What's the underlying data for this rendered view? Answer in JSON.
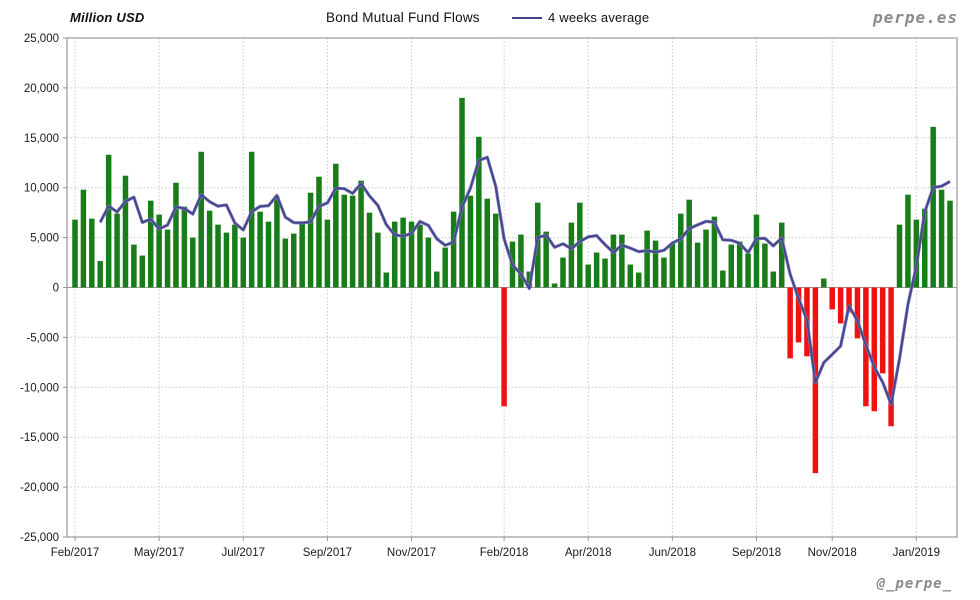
{
  "header": {
    "unit_label": "Million USD",
    "title": "Bond Mutual Fund Flows",
    "legend_label": "4 weeks average",
    "brand": "perpe.es"
  },
  "footer": {
    "handle": "@_perpe_"
  },
  "chart_data": {
    "type": "bar",
    "title": "Bond Mutual Fund Flows",
    "ylabel": "Million USD",
    "ylim": [
      -25000,
      25000
    ],
    "y_tick_step": 5000,
    "grid": true,
    "legend_position": "top",
    "frequency": "weekly",
    "series": [
      {
        "name": "Weekly bond mutual fund flows (Million USD)",
        "type": "bar"
      },
      {
        "name": "4 weeks average",
        "type": "line",
        "derived": "trailing_mean_window_4"
      }
    ],
    "weekly_values": [
      6800,
      9800,
      6900,
      2650,
      13300,
      7400,
      11200,
      4300,
      3200,
      8700,
      7300,
      5800,
      10500,
      8100,
      5000,
      13600,
      7700,
      6300,
      5500,
      6300,
      5000,
      13600,
      7600,
      6600,
      9100,
      4900,
      5400,
      6500,
      9500,
      11100,
      6800,
      12400,
      9300,
      9200,
      10700,
      7500,
      5500,
      1500,
      6600,
      7000,
      6600,
      6300,
      5000,
      1600,
      4000,
      7600,
      19000,
      9200,
      15100,
      8900,
      7400,
      -11900,
      4600,
      5300,
      1600,
      8500,
      5600,
      400,
      3000,
      6500,
      8500,
      2300,
      3500,
      2900,
      5300,
      5300,
      2300,
      1500,
      5700,
      4700,
      3000,
      4400,
      7400,
      8800,
      4500,
      5800,
      7100,
      1700,
      4300,
      4600,
      3400,
      7300,
      4400,
      1600,
      6500,
      -7100,
      -5500,
      -6900,
      -18600,
      900,
      -2200,
      -3600,
      -2500,
      -5100,
      -11900,
      -12400,
      -8600,
      -13900,
      6300,
      9300,
      6800,
      7900,
      16100,
      9800,
      8700
    ],
    "x_tick_labels": [
      "Feb/2017",
      "May/2017",
      "Jul/2017",
      "Sep/2017",
      "Nov/2017",
      "Feb/2018",
      "Apr/2018",
      "Jun/2018",
      "Sep/2018",
      "Nov/2018",
      "Jan/2019"
    ],
    "x_tick_week_indices": [
      0,
      10,
      20,
      30,
      40,
      51,
      61,
      71,
      81,
      90,
      100
    ],
    "colors": {
      "positive_bar": "#187c18",
      "negative_bar": "#ee1211",
      "average_line": "#44448c",
      "gridline": "#c9c9c9",
      "plot_border": "#9a9a9a",
      "zero_line": "#9a9a9a",
      "axis_text": "#1a1a1a"
    }
  }
}
